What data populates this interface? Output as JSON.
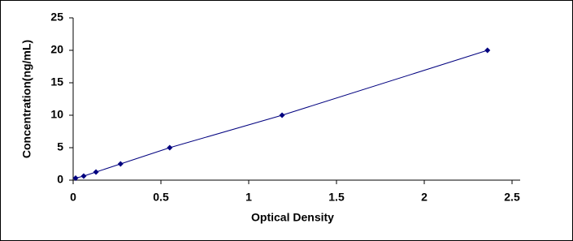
{
  "chart_data": {
    "type": "scatter-line",
    "x_label": "Optical Density",
    "y_label": "Concentration(ng/mL)",
    "x": [
      0.014,
      0.06,
      0.13,
      0.27,
      0.55,
      1.19,
      2.36
    ],
    "values": [
      0.31,
      0.625,
      1.25,
      2.5,
      5,
      10,
      20
    ],
    "color": "#00007f",
    "xlim": [
      0,
      2.5
    ],
    "xticks": [
      0,
      0.5,
      1,
      1.5,
      2,
      2.5
    ],
    "ylim": [
      0,
      25
    ],
    "yticks": [
      0,
      5,
      10,
      15,
      20,
      25
    ]
  }
}
